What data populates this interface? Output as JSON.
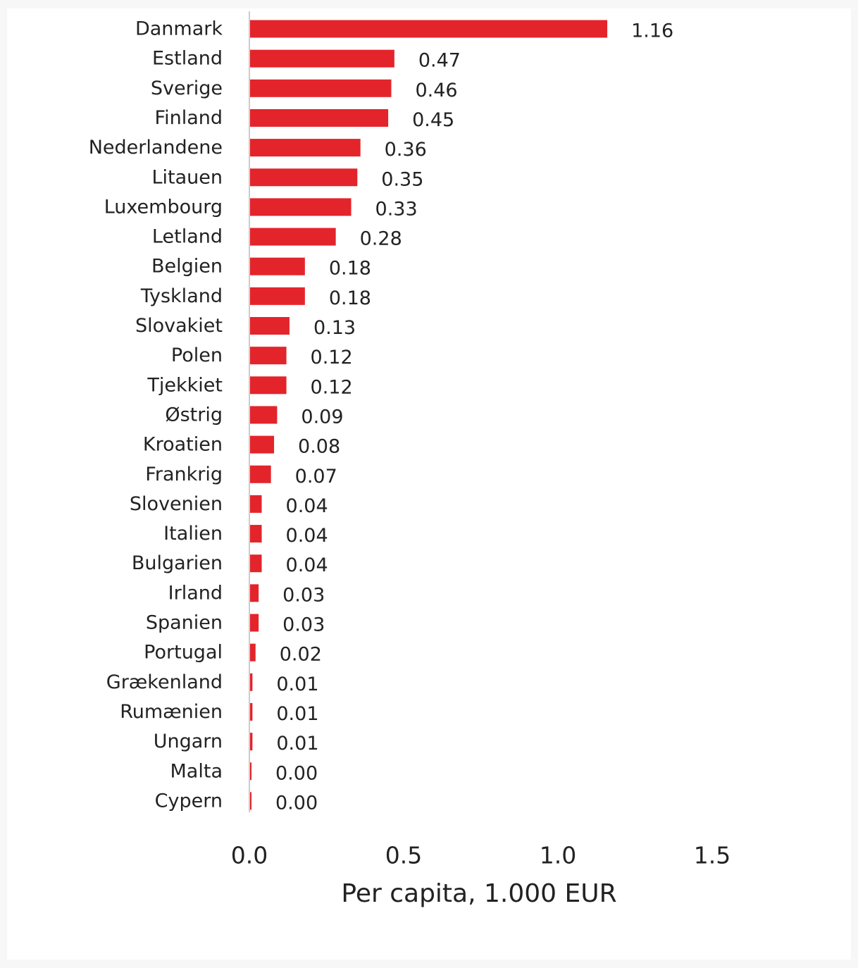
{
  "chart_data": {
    "type": "bar",
    "orientation": "horizontal",
    "title": "",
    "xlabel": "Per capita, 1.000 EUR",
    "ylabel": "",
    "xlim": [
      0,
      1.5
    ],
    "xticks": [
      0.0,
      0.5,
      1.0,
      1.5
    ],
    "xtick_labels": [
      "0.0",
      "0.5",
      "1.0",
      "1.5"
    ],
    "grid": false,
    "bar_color": "#e3242b",
    "categories": [
      "Danmark",
      "Estland",
      "Sverige",
      "Finland",
      "Nederlandene",
      "Litauen",
      "Luxembourg",
      "Letland",
      "Belgien",
      "Tyskland",
      "Slovakiet",
      "Polen",
      "Tjekkiet",
      "Østrig",
      "Kroatien",
      "Frankrig",
      "Slovenien",
      "Italien",
      "Bulgarien",
      "Irland",
      "Spanien",
      "Portugal",
      "Grækenland",
      "Rumænien",
      "Ungarn",
      "Malta",
      "Cypern"
    ],
    "values": [
      1.16,
      0.47,
      0.46,
      0.45,
      0.36,
      0.35,
      0.33,
      0.28,
      0.18,
      0.18,
      0.13,
      0.12,
      0.12,
      0.09,
      0.08,
      0.07,
      0.04,
      0.04,
      0.04,
      0.03,
      0.03,
      0.02,
      0.01,
      0.01,
      0.01,
      0.0,
      0.0
    ],
    "value_labels": [
      "1.16",
      "0.47",
      "0.46",
      "0.45",
      "0.36",
      "0.35",
      "0.33",
      "0.28",
      "0.18",
      "0.18",
      "0.13",
      "0.12",
      "0.12",
      "0.09",
      "0.08",
      "0.07",
      "0.04",
      "0.04",
      "0.04",
      "0.03",
      "0.03",
      "0.02",
      "0.01",
      "0.01",
      "0.01",
      "0.00",
      "0.00"
    ]
  }
}
